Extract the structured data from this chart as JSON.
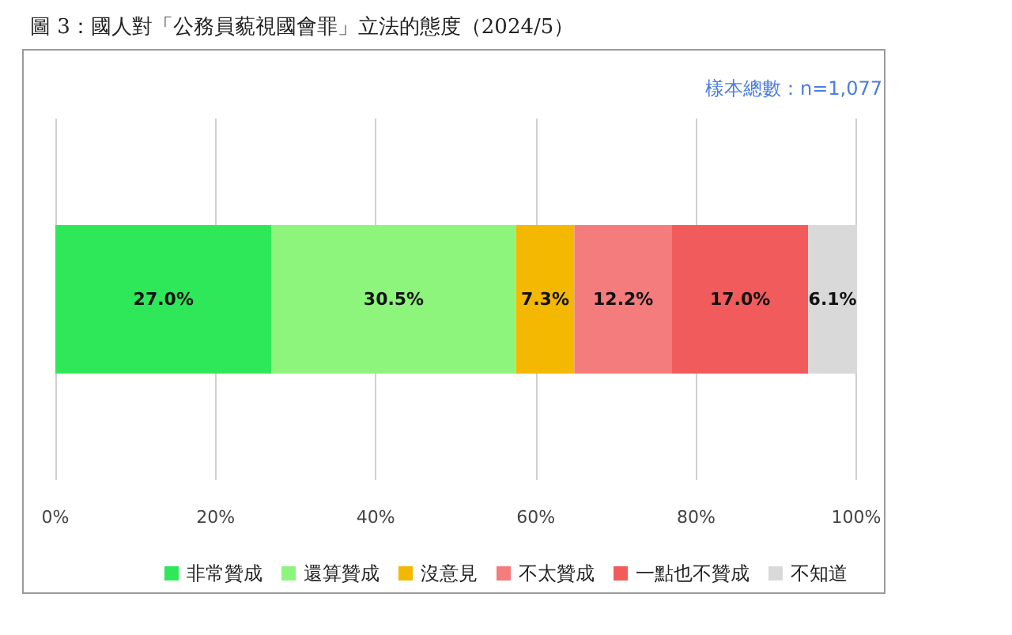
{
  "chart_data": {
    "type": "bar",
    "orientation": "horizontal",
    "stacked": true,
    "title": "圖 3：國人對「公務員藐視國會罪」立法的態度（2024/5）",
    "annotations": [
      "樣本總數：n=1,077"
    ],
    "categories": [
      null
    ],
    "series": [
      {
        "name": "非常贊成",
        "color": "#2ee85a",
        "values": [
          27.0
        ],
        "value_labels": [
          "27.0%"
        ]
      },
      {
        "name": "還算贊成",
        "color": "#8ef57c",
        "values": [
          30.5
        ],
        "value_labels": [
          "30.5%"
        ]
      },
      {
        "name": "沒意見",
        "color": "#f5b800",
        "values": [
          7.3
        ],
        "value_labels": [
          "7.3%"
        ]
      },
      {
        "name": "不太贊成",
        "color": "#f47c7c",
        "values": [
          12.2
        ],
        "value_labels": [
          "12.2%"
        ]
      },
      {
        "name": "一點也不贊成",
        "color": "#f25b5b",
        "values": [
          17.0
        ],
        "value_labels": [
          "17.0%"
        ]
      },
      {
        "name": "不知道",
        "color": "#d9d9d9",
        "values": [
          6.1
        ],
        "value_labels": [
          "6.1%"
        ]
      }
    ],
    "xlim": [
      0,
      100.1
    ],
    "xticks": [
      {
        "value": 0,
        "label": "0%"
      },
      {
        "value": 20,
        "label": "20%"
      },
      {
        "value": 40,
        "label": "40%"
      },
      {
        "value": 60,
        "label": "60%"
      },
      {
        "value": 80,
        "label": "80%"
      },
      {
        "value": 100,
        "label": "100%"
      }
    ],
    "grid": "x",
    "legend": "bottom"
  }
}
